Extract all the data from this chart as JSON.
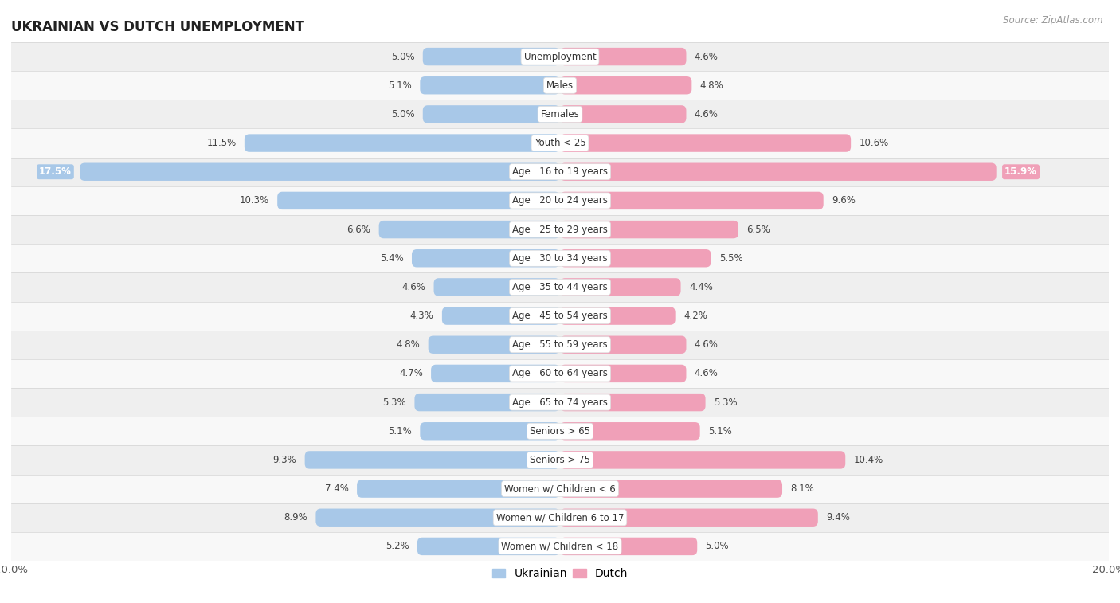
{
  "title": "UKRAINIAN VS DUTCH UNEMPLOYMENT",
  "source": "Source: ZipAtlas.com",
  "categories": [
    "Unemployment",
    "Males",
    "Females",
    "Youth < 25",
    "Age | 16 to 19 years",
    "Age | 20 to 24 years",
    "Age | 25 to 29 years",
    "Age | 30 to 34 years",
    "Age | 35 to 44 years",
    "Age | 45 to 54 years",
    "Age | 55 to 59 years",
    "Age | 60 to 64 years",
    "Age | 65 to 74 years",
    "Seniors > 65",
    "Seniors > 75",
    "Women w/ Children < 6",
    "Women w/ Children 6 to 17",
    "Women w/ Children < 18"
  ],
  "ukrainian": [
    5.0,
    5.1,
    5.0,
    11.5,
    17.5,
    10.3,
    6.6,
    5.4,
    4.6,
    4.3,
    4.8,
    4.7,
    5.3,
    5.1,
    9.3,
    7.4,
    8.9,
    5.2
  ],
  "dutch": [
    4.6,
    4.8,
    4.6,
    10.6,
    15.9,
    9.6,
    6.5,
    5.5,
    4.4,
    4.2,
    4.6,
    4.6,
    5.3,
    5.1,
    10.4,
    8.1,
    9.4,
    5.0
  ],
  "ukrainian_color": "#a8c8e8",
  "dutch_color": "#f0a0b8",
  "highlight_row": 4,
  "max_val": 20.0,
  "bar_height": 0.62,
  "row_bg_colors": [
    "#efefef",
    "#f8f8f8"
  ],
  "title_fontsize": 12,
  "label_fontsize": 8.5,
  "value_fontsize": 8.5,
  "legend_fontsize": 10
}
